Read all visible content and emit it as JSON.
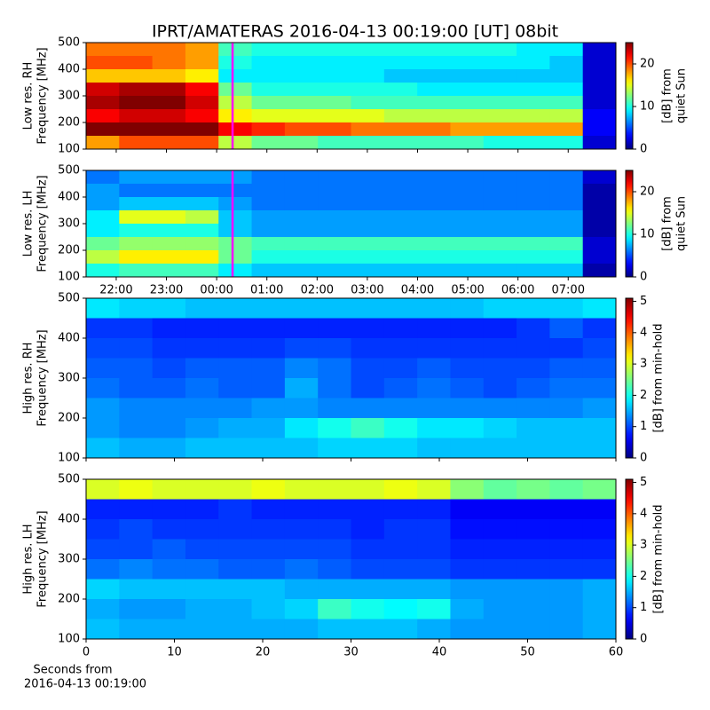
{
  "title": "IPRT/AMATERAS 2016-04-13 00:19:00 [UT]   08bit",
  "chart_data": [
    {
      "type": "heatmap",
      "ylabel": [
        "Low res. RH",
        "Frequency [MHz]"
      ],
      "ylim": [
        100,
        500
      ],
      "yticks": [
        100,
        200,
        300,
        400,
        500
      ],
      "xlim": [
        21.4,
        31.95
      ],
      "marker": {
        "x": 24.3167,
        "color": "#ff00ff"
      },
      "colorbar": {
        "label": [
          "[dB] from",
          "quiet Sun"
        ],
        "clim": [
          0,
          25
        ],
        "ticks": [
          0,
          10,
          20
        ],
        "colormap": "jet"
      },
      "z": [
        [
          19,
          19,
          19,
          18,
          11,
          10,
          10,
          10,
          10,
          10,
          10,
          10,
          10,
          9,
          9,
          2
        ],
        [
          20,
          20,
          19,
          18,
          10,
          9,
          9,
          9,
          9,
          9,
          9,
          9,
          9,
          9,
          8,
          2
        ],
        [
          17,
          17,
          17,
          16,
          9,
          9,
          9,
          9,
          9,
          8,
          8,
          8,
          8,
          8,
          8,
          2
        ],
        [
          23,
          24,
          24,
          22,
          12,
          10,
          10,
          10,
          10,
          10,
          9,
          9,
          9,
          9,
          9,
          2
        ],
        [
          24,
          25,
          25,
          23,
          14,
          12,
          12,
          12,
          11,
          11,
          11,
          11,
          11,
          11,
          11,
          2
        ],
        [
          22,
          23,
          23,
          22,
          16,
          15,
          15,
          15,
          15,
          14,
          14,
          14,
          14,
          14,
          14,
          3
        ],
        [
          25,
          25,
          25,
          25,
          22,
          21,
          20,
          20,
          19,
          19,
          19,
          18,
          18,
          18,
          18,
          3
        ],
        [
          18,
          20,
          20,
          20,
          14,
          12,
          12,
          11,
          11,
          11,
          11,
          11,
          10,
          10,
          10,
          2
        ]
      ]
    },
    {
      "type": "heatmap",
      "ylabel": [
        "Low res. LH",
        "Frequency [MHz]"
      ],
      "ylim": [
        100,
        500
      ],
      "yticks": [
        100,
        200,
        300,
        400,
        500
      ],
      "xlim": [
        21.4,
        31.95
      ],
      "xticks": [
        {
          "value": 22,
          "label": "22:00"
        },
        {
          "value": 23,
          "label": "23:00"
        },
        {
          "value": 24,
          "label": "00:00"
        },
        {
          "value": 25,
          "label": "01:00"
        },
        {
          "value": 26,
          "label": "02:00"
        },
        {
          "value": 27,
          "label": "03:00"
        },
        {
          "value": 28,
          "label": "04:00"
        },
        {
          "value": 29,
          "label": "05:00"
        },
        {
          "value": 30,
          "label": "06:00"
        },
        {
          "value": 31,
          "label": "07:00"
        }
      ],
      "marker": {
        "x": 24.3167,
        "color": "#ff00ff"
      },
      "colorbar": {
        "label": [
          "[dB] from",
          "quiet Sun"
        ],
        "clim": [
          0,
          25
        ],
        "ticks": [
          0,
          10,
          20
        ],
        "colormap": "jet"
      },
      "z": [
        [
          6,
          7,
          7,
          7,
          7,
          6,
          6,
          6,
          6,
          6,
          6,
          6,
          6,
          6,
          6,
          2
        ],
        [
          7,
          6,
          6,
          6,
          6,
          6,
          6,
          6,
          6,
          6,
          6,
          6,
          6,
          6,
          6,
          1
        ],
        [
          7,
          8,
          8,
          8,
          7,
          6,
          6,
          6,
          6,
          6,
          6,
          6,
          6,
          6,
          6,
          1
        ],
        [
          9,
          15,
          15,
          14,
          8,
          7,
          7,
          7,
          7,
          7,
          7,
          7,
          7,
          7,
          7,
          1
        ],
        [
          9,
          10,
          10,
          10,
          8,
          7,
          7,
          7,
          7,
          7,
          7,
          7,
          7,
          7,
          7,
          1
        ],
        [
          12,
          13,
          13,
          13,
          12,
          11,
          11,
          11,
          11,
          11,
          11,
          11,
          11,
          11,
          11,
          2
        ],
        [
          14,
          16,
          16,
          16,
          12,
          10,
          10,
          10,
          10,
          10,
          10,
          10,
          10,
          10,
          10,
          2
        ],
        [
          10,
          11,
          11,
          11,
          9,
          8,
          8,
          8,
          8,
          8,
          8,
          8,
          8,
          8,
          8,
          1
        ]
      ]
    },
    {
      "type": "heatmap",
      "ylabel": [
        "High res. RH",
        "Frequency [MHz]"
      ],
      "ylim": [
        100,
        500
      ],
      "yticks": [
        100,
        200,
        300,
        400,
        500
      ],
      "xlim": [
        0,
        60
      ],
      "colorbar": {
        "label": [
          "[dB] from min-hold"
        ],
        "clim": [
          0,
          5.1
        ],
        "ticks": [
          0,
          1,
          2,
          3,
          4,
          5
        ],
        "colormap": "jet"
      },
      "z": [
        [
          1.8,
          1.7,
          1.7,
          1.6,
          1.6,
          1.6,
          1.6,
          1.6,
          1.6,
          1.6,
          1.6,
          1.6,
          1.7,
          1.7,
          1.7,
          1.8
        ],
        [
          0.9,
          0.9,
          0.8,
          0.8,
          0.8,
          0.8,
          0.8,
          0.8,
          0.8,
          0.8,
          0.8,
          0.8,
          0.8,
          0.9,
          1.1,
          0.9
        ],
        [
          1.0,
          1.0,
          0.9,
          0.9,
          0.9,
          0.9,
          1.0,
          1.0,
          0.9,
          0.9,
          0.9,
          0.9,
          0.9,
          0.9,
          0.9,
          1.0
        ],
        [
          1.1,
          1.1,
          1.0,
          1.1,
          1.1,
          1.1,
          1.3,
          1.2,
          1.0,
          1.0,
          1.1,
          1.0,
          1.0,
          1.0,
          1.1,
          1.1
        ],
        [
          1.2,
          1.1,
          1.1,
          1.2,
          1.1,
          1.1,
          1.5,
          1.2,
          1.0,
          1.1,
          1.2,
          1.1,
          1.0,
          1.1,
          1.2,
          1.2
        ],
        [
          1.4,
          1.3,
          1.3,
          1.3,
          1.3,
          1.4,
          1.4,
          1.3,
          1.3,
          1.3,
          1.3,
          1.3,
          1.3,
          1.3,
          1.3,
          1.4
        ],
        [
          1.4,
          1.3,
          1.3,
          1.4,
          1.5,
          1.5,
          1.8,
          2.0,
          2.2,
          2.0,
          1.8,
          1.8,
          1.7,
          1.6,
          1.6,
          1.6
        ],
        [
          1.6,
          1.5,
          1.5,
          1.6,
          1.6,
          1.6,
          1.6,
          1.7,
          1.7,
          1.7,
          1.6,
          1.6,
          1.6,
          1.6,
          1.6,
          1.6
        ]
      ]
    },
    {
      "type": "heatmap",
      "ylabel": [
        "High res. LH",
        "Frequency [MHz]"
      ],
      "ylim": [
        100,
        500
      ],
      "yticks": [
        100,
        200,
        300,
        400,
        500
      ],
      "xlim": [
        0,
        60
      ],
      "xticks": [
        0,
        10,
        20,
        30,
        40,
        50,
        60
      ],
      "xlabel": [
        "Seconds from",
        "2016-04-13 00:19:00"
      ],
      "colorbar": {
        "label": [
          "[dB] from min-hold"
        ],
        "clim": [
          0,
          5.1
        ],
        "ticks": [
          0,
          1,
          2,
          3,
          4,
          5
        ],
        "colormap": "jet"
      },
      "z": [
        [
          3.0,
          3.1,
          3.0,
          3.0,
          3.0,
          3.1,
          3.0,
          3.0,
          3.0,
          3.1,
          3.0,
          2.6,
          2.4,
          2.5,
          2.4,
          2.5
        ],
        [
          0.8,
          0.8,
          0.8,
          0.8,
          0.9,
          0.8,
          0.8,
          0.8,
          0.8,
          0.8,
          0.8,
          0.6,
          0.6,
          0.6,
          0.6,
          0.6
        ],
        [
          0.9,
          1.0,
          0.9,
          0.9,
          0.9,
          0.9,
          0.9,
          0.9,
          0.8,
          0.9,
          0.9,
          0.7,
          0.7,
          0.7,
          0.7,
          0.7
        ],
        [
          1.0,
          1.0,
          1.1,
          1.0,
          1.0,
          1.0,
          1.0,
          1.0,
          0.9,
          0.9,
          0.9,
          0.8,
          0.8,
          0.8,
          0.8,
          0.8
        ],
        [
          1.2,
          1.3,
          1.2,
          1.2,
          1.1,
          1.1,
          1.2,
          1.1,
          1.0,
          1.0,
          1.0,
          0.9,
          0.9,
          0.9,
          0.9,
          0.9
        ],
        [
          1.7,
          1.6,
          1.6,
          1.6,
          1.6,
          1.6,
          1.5,
          1.5,
          1.5,
          1.5,
          1.5,
          1.4,
          1.4,
          1.4,
          1.4,
          1.5
        ],
        [
          1.5,
          1.4,
          1.4,
          1.5,
          1.5,
          1.6,
          1.7,
          2.2,
          2.0,
          1.9,
          2.0,
          1.5,
          1.4,
          1.4,
          1.4,
          1.5
        ],
        [
          1.6,
          1.5,
          1.5,
          1.5,
          1.5,
          1.5,
          1.5,
          1.6,
          1.6,
          1.6,
          1.5,
          1.4,
          1.4,
          1.4,
          1.4,
          1.5
        ]
      ]
    }
  ]
}
